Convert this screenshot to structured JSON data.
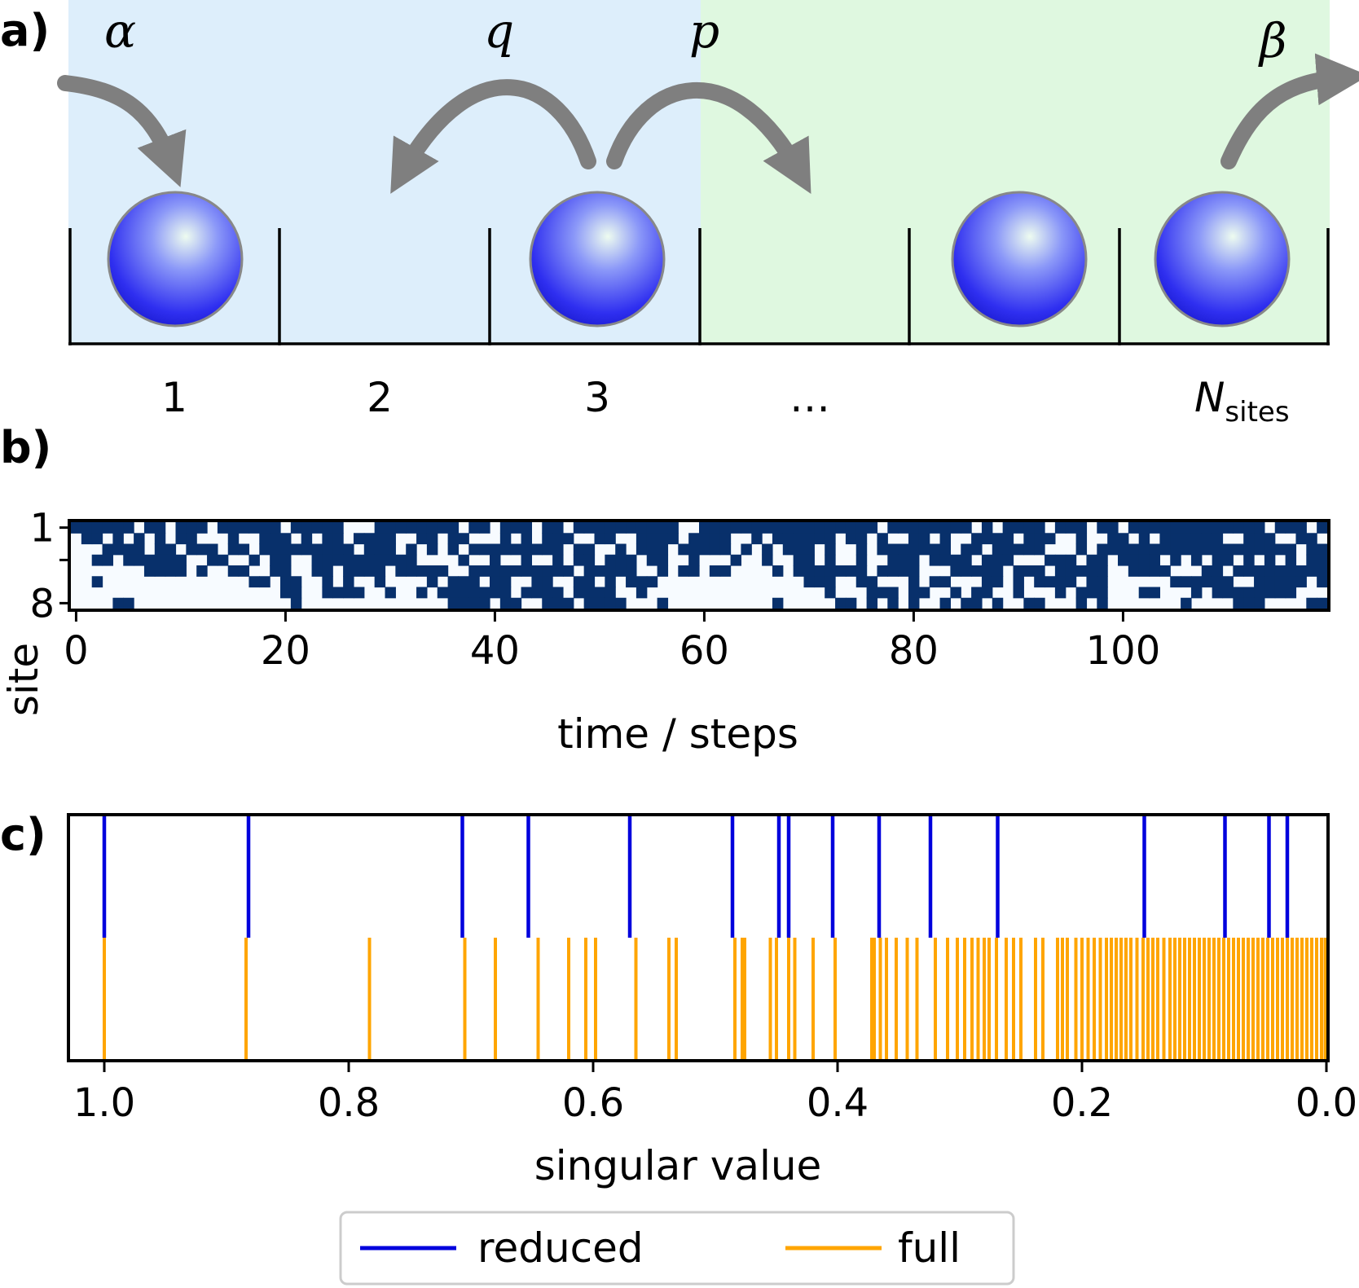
{
  "panels": {
    "a": {
      "label": "a)",
      "rates": {
        "alpha": "α",
        "q": "q",
        "p": "p",
        "beta": "β"
      },
      "site_labels": [
        "1",
        "2",
        "3",
        "…"
      ],
      "last_site_main": "N",
      "last_site_sub": "sites",
      "colors": {
        "left_region": "#ddeefb",
        "right_region": "#dff8e0",
        "arrow": "#7f7f7f",
        "particle": "#2f2ff0"
      },
      "occupied_slots": [
        0,
        2,
        4,
        5
      ]
    },
    "b": {
      "label": "b)",
      "ylabel": "site",
      "ytick_labels": [
        "1",
        "8"
      ],
      "xlabel": "time / steps",
      "xtick_labels": [
        "0",
        "20",
        "40",
        "60",
        "80",
        "100"
      ],
      "colors": {
        "occupied": "#08306b",
        "empty": "#f7fbff"
      }
    },
    "c": {
      "label": "c)",
      "xlabel": "singular value",
      "xtick_labels": [
        "1.0",
        "0.8",
        "0.6",
        "0.4",
        "0.2",
        "0.0"
      ],
      "legend": {
        "reduced": "reduced",
        "full": "full"
      },
      "colors": {
        "reduced": "#0000dd",
        "full": "#ffa500"
      }
    }
  },
  "chart_data": [
    {
      "type": "heatmap",
      "panel": "b",
      "xlabel": "time / steps",
      "ylabel": "site",
      "xlim": [
        0,
        120
      ],
      "ylim": [
        1,
        8
      ],
      "xticks": [
        0,
        20,
        40,
        60,
        80,
        100
      ],
      "yticks": [
        1,
        8
      ],
      "rows": [
        "111111011011101111110111110001111111101101110110111111111100111111111111111110111111110101111011101101111111111111011101",
        "011010101011000100111010110111100110110001010111001100111101111001011111101101001101001111011100100110101111110011100110",
        "000111101101110110111111111011101010101111111110110010111011111010101110100101111111011011111000101111111111111111111011",
        "001101111110011001011001111111111000010010010010110111011001000100100110100100111011110111000111011011110101011010101011",
        "000000011110100110011001101111011111001111111111011111001011011000010111111101111000111110111011111001111000110111111111",
        "001000000000000001101100101001000010111011001100110101110000000000000011100110001011000110101111011000000111111001111101",
        "000000000000000000001100111100100101111111011110111100100000000000000000100011101100101100100010111000110001011111111000",
        "000011000000000000000100000000000000111101100111011110001000000000010000011010101001011010011000101000000010000111000011"
      ]
    },
    {
      "type": "event",
      "panel": "c",
      "xlabel": "singular value",
      "xlim": [
        1.0,
        0.0
      ],
      "xticks": [
        1.0,
        0.8,
        0.6,
        0.4,
        0.2,
        0.0
      ],
      "legend_position": "bottom-center",
      "series": [
        {
          "name": "reduced",
          "values": [
            1.0,
            0.882,
            0.707,
            0.653,
            0.57,
            0.486,
            0.448,
            0.44,
            0.404,
            0.366,
            0.324,
            0.269,
            0.149,
            0.083,
            0.047,
            0.032
          ]
        },
        {
          "name": "full",
          "values": [
            1.0,
            0.884,
            0.783,
            0.705,
            0.68,
            0.645,
            0.62,
            0.606,
            0.598,
            0.565,
            0.538,
            0.532,
            0.484,
            0.478,
            0.476,
            0.455,
            0.45,
            0.44,
            0.435,
            0.42,
            0.402,
            0.372,
            0.37,
            0.365,
            0.36,
            0.352,
            0.343,
            0.335,
            0.32,
            0.31,
            0.302,
            0.296,
            0.29,
            0.285,
            0.28,
            0.276,
            0.27,
            0.262,
            0.256,
            0.25,
            0.238,
            0.232,
            0.22,
            0.216,
            0.212,
            0.205,
            0.2,
            0.195,
            0.19,
            0.185,
            0.18,
            0.176,
            0.172,
            0.168,
            0.164,
            0.16,
            0.155,
            0.15,
            0.146,
            0.142,
            0.138,
            0.133,
            0.128,
            0.124,
            0.12,
            0.116,
            0.112,
            0.108,
            0.104,
            0.1,
            0.096,
            0.092,
            0.088,
            0.084,
            0.08,
            0.076,
            0.072,
            0.068,
            0.064,
            0.06,
            0.056,
            0.052,
            0.048,
            0.044,
            0.04,
            0.036,
            0.032,
            0.028,
            0.024,
            0.02,
            0.016,
            0.012,
            0.008,
            0.004,
            0.001
          ]
        }
      ]
    }
  ]
}
